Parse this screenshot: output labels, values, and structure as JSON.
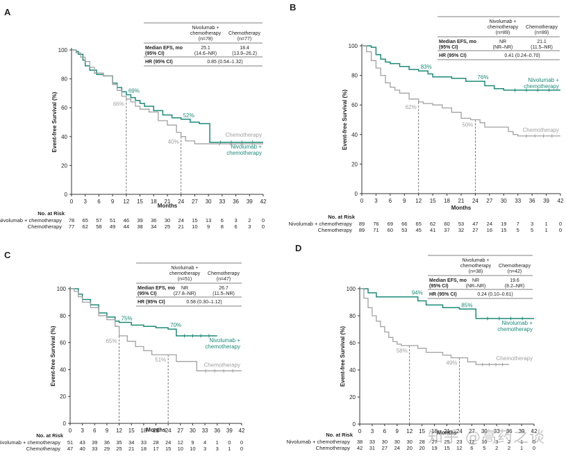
{
  "colors": {
    "nivo": "#1a8a78",
    "chemo": "#a0a0a0",
    "axis": "#333333",
    "text": "#222222"
  },
  "common": {
    "ylabel": "Event-free Survival (%)",
    "xlabel": "Months",
    "risk_header": "No. at Risk",
    "arm_nivo": "Nivolumab + chemotherapy",
    "arm_chemo": "Chemotherapy",
    "table_col_nivo": [
      "Nivolumab +",
      "chemotherapy"
    ],
    "table_col_chemo": "Chemotherapy",
    "row_median": [
      "Median EFS, mo",
      "(95% CI)"
    ],
    "row_hr": "HR (95% CI)",
    "curve_label_nivo": [
      "Nivolumab +",
      "chemotherapy"
    ],
    "curve_label_chemo": "Chemotherapy"
  },
  "chart_data": [
    {
      "type": "line",
      "panel": "A",
      "x": [
        0,
        3,
        6,
        9,
        12,
        15,
        18,
        21,
        24,
        27,
        30,
        33,
        36,
        39,
        42
      ],
      "xlim": [
        0,
        42
      ],
      "ylim": [
        0,
        100
      ],
      "yticks": [
        0,
        20,
        40,
        60,
        80,
        100
      ],
      "n_nivo": "(n=78)",
      "n_chemo": "(n=77)",
      "median_nivo": [
        "25.1",
        "(14.6–NR)"
      ],
      "median_chemo": [
        "18.4",
        "(13.9–26.2)"
      ],
      "hr": "0.85 (0.54–1.32)",
      "mark_nivo": [
        {
          "x": 12,
          "y": 69,
          "label": "69%"
        },
        {
          "x": 24,
          "y": 52,
          "label": "52%"
        }
      ],
      "mark_chemo": [
        {
          "x": 12,
          "y": 66,
          "label": "66%"
        },
        {
          "x": 24,
          "y": 40,
          "label": "40%"
        }
      ],
      "risk_nivo": [
        "78",
        "65",
        "57",
        "51",
        "46",
        "39",
        "36",
        "30",
        "24",
        "15",
        "13",
        "6",
        "3",
        "2",
        "0"
      ],
      "risk_chemo": [
        "77",
        "62",
        "58",
        "49",
        "44",
        "38",
        "34",
        "25",
        "21",
        "10",
        "9",
        "8",
        "6",
        "3",
        "0"
      ],
      "series": [
        {
          "name": "Nivolumab + chemotherapy",
          "points": [
            [
              0,
              100
            ],
            [
              1,
              99
            ],
            [
              1.5,
              97
            ],
            [
              2.5,
              93
            ],
            [
              3,
              89
            ],
            [
              4,
              86
            ],
            [
              5.5,
              83
            ],
            [
              7,
              82
            ],
            [
              9,
              77
            ],
            [
              10,
              74
            ],
            [
              11,
              71
            ],
            [
              12,
              69
            ],
            [
              13,
              67
            ],
            [
              14,
              65
            ],
            [
              15,
              63
            ],
            [
              16,
              61
            ],
            [
              18,
              58
            ],
            [
              20,
              55
            ],
            [
              22,
              53
            ],
            [
              24,
              52
            ],
            [
              26,
              50
            ],
            [
              28,
              49
            ],
            [
              30,
              49
            ],
            [
              30.3,
              36
            ],
            [
              42,
              36
            ]
          ]
        },
        {
          "name": "Chemotherapy",
          "points": [
            [
              0,
              100
            ],
            [
              1,
              98
            ],
            [
              2,
              95
            ],
            [
              3,
              92
            ],
            [
              4,
              88
            ],
            [
              5,
              84
            ],
            [
              7,
              82
            ],
            [
              9,
              76
            ],
            [
              10,
              72
            ],
            [
              11,
              68
            ],
            [
              12,
              66
            ],
            [
              13,
              64
            ],
            [
              14,
              61
            ],
            [
              15,
              59
            ],
            [
              17,
              57
            ],
            [
              19,
              51
            ],
            [
              21,
              48
            ],
            [
              23,
              43
            ],
            [
              24,
              40
            ],
            [
              25,
              37
            ],
            [
              27,
              35
            ],
            [
              30,
              35
            ],
            [
              42,
              35
            ]
          ]
        }
      ]
    },
    {
      "type": "line",
      "panel": "B",
      "x": [
        0,
        3,
        6,
        9,
        12,
        15,
        18,
        21,
        24,
        27,
        30,
        33,
        36,
        39,
        42
      ],
      "xlim": [
        0,
        42
      ],
      "ylim": [
        0,
        100
      ],
      "yticks": [
        0,
        20,
        40,
        60,
        80,
        100
      ],
      "n_nivo": "(n=89)",
      "n_chemo": "(n=89)",
      "median_nivo": [
        "NR",
        "(NR–NR)"
      ],
      "median_chemo": [
        "21.1",
        "(11.5–NR)"
      ],
      "hr": "0.41 (0.24–0.70)",
      "mark_nivo": [
        {
          "x": 12,
          "y": 83,
          "label": "83%"
        },
        {
          "x": 24,
          "y": 76,
          "label": "76%"
        }
      ],
      "mark_chemo": [
        {
          "x": 12,
          "y": 62,
          "label": "62%"
        },
        {
          "x": 24,
          "y": 50,
          "label": "50%"
        }
      ],
      "risk_nivo": [
        "89",
        "76",
        "69",
        "66",
        "65",
        "62",
        "60",
        "53",
        "47",
        "24",
        "19",
        "7",
        "3",
        "1",
        "0"
      ],
      "risk_chemo": [
        "89",
        "71",
        "60",
        "53",
        "45",
        "41",
        "37",
        "32",
        "27",
        "16",
        "15",
        "5",
        "5",
        "1",
        "0"
      ],
      "series": [
        {
          "name": "Nivolumab + chemotherapy",
          "points": [
            [
              0,
              100
            ],
            [
              2,
              99
            ],
            [
              3,
              94
            ],
            [
              4,
              91
            ],
            [
              5,
              89
            ],
            [
              6,
              88
            ],
            [
              8,
              86
            ],
            [
              10,
              84
            ],
            [
              12,
              83
            ],
            [
              14,
              81
            ],
            [
              15,
              79
            ],
            [
              17,
              79
            ],
            [
              19,
              78
            ],
            [
              21,
              78
            ],
            [
              22,
              76
            ],
            [
              24,
              76
            ],
            [
              26,
              73
            ],
            [
              28,
              71
            ],
            [
              30,
              70
            ],
            [
              42,
              70
            ]
          ]
        },
        {
          "name": "Chemotherapy",
          "points": [
            [
              0,
              100
            ],
            [
              1,
              96
            ],
            [
              2,
              90
            ],
            [
              3,
              85
            ],
            [
              4,
              80
            ],
            [
              5,
              75
            ],
            [
              6,
              72
            ],
            [
              7,
              70
            ],
            [
              8,
              68
            ],
            [
              10,
              64
            ],
            [
              12,
              62
            ],
            [
              13,
              61
            ],
            [
              15,
              60
            ],
            [
              17,
              58
            ],
            [
              19,
              55
            ],
            [
              21,
              51
            ],
            [
              23,
              50
            ],
            [
              24,
              50
            ],
            [
              25,
              48
            ],
            [
              26,
              45
            ],
            [
              30,
              45
            ],
            [
              31,
              42
            ],
            [
              32,
              40
            ],
            [
              33,
              39
            ],
            [
              42,
              39
            ]
          ]
        }
      ]
    },
    {
      "type": "line",
      "panel": "C",
      "x": [
        0,
        3,
        6,
        9,
        12,
        15,
        18,
        21,
        24,
        27,
        30,
        33,
        36,
        39,
        42
      ],
      "xlim": [
        0,
        42
      ],
      "ylim": [
        0,
        100
      ],
      "yticks": [
        0,
        20,
        40,
        60,
        80,
        100
      ],
      "n_nivo": "(n=51)",
      "n_chemo": "(n=47)",
      "median_nivo": [
        "NR",
        "(27.8–NR)"
      ],
      "median_chemo": [
        "26.7",
        "(11.5–NR)"
      ],
      "hr": "0.58 (0.30–1.12)",
      "mark_nivo": [
        {
          "x": 12,
          "y": 75,
          "label": "75%"
        },
        {
          "x": 24,
          "y": 70,
          "label": "70%"
        }
      ],
      "mark_chemo": [
        {
          "x": 12,
          "y": 65,
          "label": "65%"
        },
        {
          "x": 24,
          "y": 51,
          "label": "51%"
        }
      ],
      "risk_nivo": [
        "51",
        "43",
        "39",
        "36",
        "35",
        "34",
        "33",
        "28",
        "24",
        "12",
        "9",
        "4",
        "1",
        "0",
        "0"
      ],
      "risk_chemo": [
        "47",
        "40",
        "33",
        "29",
        "25",
        "21",
        "18",
        "17",
        "15",
        "10",
        "10",
        "3",
        "3",
        "1",
        "0"
      ],
      "series": [
        {
          "name": "Nivolumab + chemotherapy",
          "points": [
            [
              0,
              100
            ],
            [
              2,
              96
            ],
            [
              3,
              92
            ],
            [
              5,
              88
            ],
            [
              7,
              82
            ],
            [
              9,
              79
            ],
            [
              11,
              76
            ],
            [
              12,
              75
            ],
            [
              15,
              73
            ],
            [
              18,
              72
            ],
            [
              21,
              71
            ],
            [
              24,
              70
            ],
            [
              25,
              70
            ],
            [
              26,
              65
            ],
            [
              36,
              65
            ]
          ]
        },
        {
          "name": "Chemotherapy",
          "points": [
            [
              0,
              100
            ],
            [
              1,
              98
            ],
            [
              2,
              94
            ],
            [
              3,
              90
            ],
            [
              5,
              86
            ],
            [
              7,
              80
            ],
            [
              9,
              77
            ],
            [
              11,
              72
            ],
            [
              12,
              65
            ],
            [
              14,
              61
            ],
            [
              16,
              57
            ],
            [
              18,
              54
            ],
            [
              20,
              51
            ],
            [
              24,
              51
            ],
            [
              26,
              46
            ],
            [
              30,
              46
            ],
            [
              31,
              39
            ],
            [
              42,
              39
            ]
          ]
        }
      ]
    },
    {
      "type": "line",
      "panel": "D",
      "x": [
        0,
        3,
        6,
        9,
        12,
        15,
        18,
        21,
        24,
        27,
        30,
        33,
        36,
        39,
        42
      ],
      "xlim": [
        0,
        42
      ],
      "ylim": [
        0,
        100
      ],
      "yticks": [
        0,
        20,
        40,
        60,
        80,
        100
      ],
      "n_nivo": "(n=38)",
      "n_chemo": "(n=42)",
      "median_nivo": [
        "NR",
        "(NR–NR)"
      ],
      "median_chemo": [
        "19.6",
        "(8.2–NR)"
      ],
      "hr": "0.24 (0.10–0.61)",
      "mark_nivo": [
        {
          "x": 12,
          "y": 94,
          "label": "94%"
        },
        {
          "x": 24,
          "y": 85,
          "label": "85%"
        }
      ],
      "mark_chemo": [
        {
          "x": 12,
          "y": 58,
          "label": "58%"
        },
        {
          "x": 24,
          "y": 49,
          "label": "49%"
        }
      ],
      "risk_nivo": [
        "38",
        "33",
        "30",
        "30",
        "30",
        "28",
        "27",
        "25",
        "23",
        "12",
        "10",
        "3",
        "2",
        "1",
        "0"
      ],
      "risk_chemo": [
        "42",
        "31",
        "27",
        "24",
        "20",
        "20",
        "19",
        "15",
        "12",
        "6",
        "5",
        "2",
        "2",
        "1",
        "0"
      ],
      "series": [
        {
          "name": "Nivolumab + chemotherapy",
          "points": [
            [
              0,
              100
            ],
            [
              2,
              97
            ],
            [
              4,
              94
            ],
            [
              12,
              94
            ],
            [
              14,
              91
            ],
            [
              16,
              88
            ],
            [
              20,
              86
            ],
            [
              24,
              85
            ],
            [
              27,
              85
            ],
            [
              28,
              78
            ],
            [
              42,
              78
            ]
          ]
        },
        {
          "name": "Chemotherapy",
          "points": [
            [
              0,
              100
            ],
            [
              1,
              93
            ],
            [
              2,
              86
            ],
            [
              3,
              80
            ],
            [
              4,
              76
            ],
            [
              5,
              72
            ],
            [
              6,
              68
            ],
            [
              7,
              64
            ],
            [
              8,
              61
            ],
            [
              9,
              59
            ],
            [
              10,
              58
            ],
            [
              12,
              58
            ],
            [
              14,
              56
            ],
            [
              16,
              53
            ],
            [
              18,
              53
            ],
            [
              20,
              51
            ],
            [
              22,
              49
            ],
            [
              24,
              49
            ],
            [
              26,
              46
            ],
            [
              28,
              44
            ],
            [
              36,
              44
            ]
          ]
        }
      ]
    }
  ]
}
